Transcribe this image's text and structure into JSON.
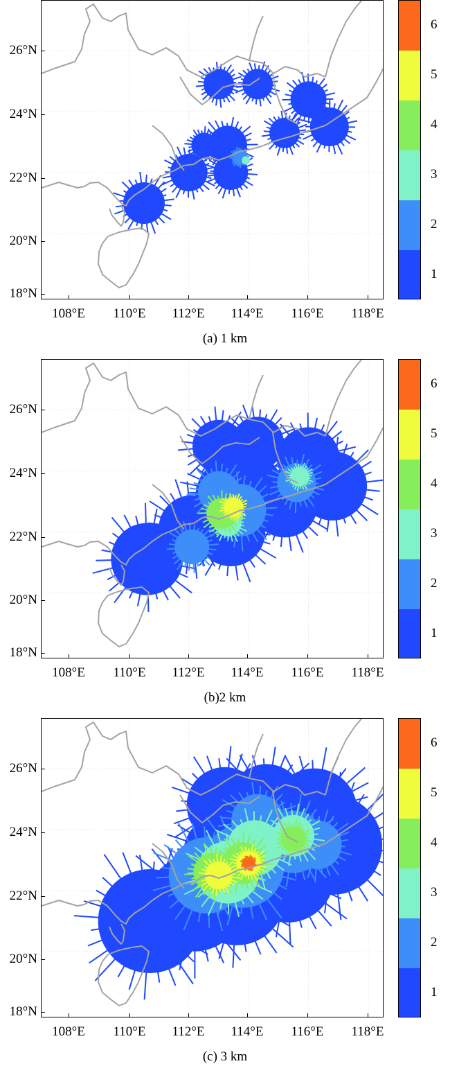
{
  "x_ticks": [
    "108°E",
    "110°E",
    "112°E",
    "114°E",
    "116°E",
    "118°E"
  ],
  "y_ticks": [
    "18°N",
    "20°N",
    "22°N",
    "24°N",
    "26°N"
  ],
  "colorbar": {
    "levels": [
      "1",
      "2",
      "3",
      "4",
      "5",
      "6"
    ],
    "colors": [
      "#1f48ff",
      "#3d8ef8",
      "#7ff2c8",
      "#86ee5a",
      "#eefc3c",
      "#fb6a1c"
    ]
  },
  "panels": [
    {
      "caption": "(a) 1 km"
    },
    {
      "caption": "(b)2 km"
    },
    {
      "caption": "(c) 3 km"
    }
  ],
  "colors": {
    "coastline": "#a3a3a3",
    "grid": "#c8c8c8"
  }
}
